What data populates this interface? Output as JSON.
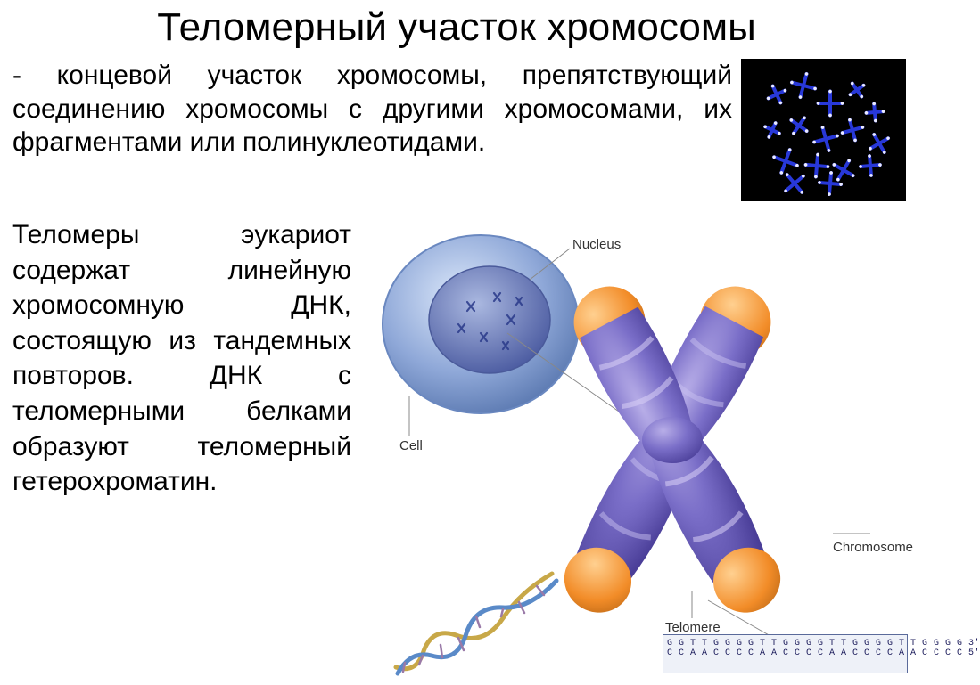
{
  "title": "Теломерный участок хромосомы",
  "para1": "- концевой участок хромосомы, препятствующий соединению хромосомы с другими хромосомами, их фрагментами или полинуклеотидами.",
  "para2": "Теломеры эукариот содержат линейную хромосомную ДНК, состоящую из тандемных повторов. ДНК с теломерными белками образуют теломерный гетерохроматин.",
  "figure": {
    "labels": {
      "nucleus": "Nucleus",
      "cell": "Cell",
      "telomere": "Telomere",
      "chromosome": "Chromosome"
    },
    "colors": {
      "chromosome_body_light": "#8a7fc8",
      "chromosome_body_dark": "#5a4ea8",
      "chromosome_shadow": "#3c3580",
      "telomere_tip": "#f28c28",
      "telomere_tip_light": "#ffb85a",
      "cell_outer": "#b0c8e8",
      "cell_inner": "#3a5aa8",
      "nucleus_fill": "#9aafd8",
      "nucleus_inner": "#6a7fc0",
      "dna_strand1": "#c8a848",
      "dna_strand2": "#5a8ac8",
      "leader_line": "#888888"
    },
    "sequence": {
      "top": "G G T T G G G G T T G G G G T T G G G G T T G G G G 3'",
      "bottom": "C C A A C C C C A A C C C C A A C C C C A A C C C C 5'"
    }
  },
  "thumb": {
    "bg": "#000000",
    "chromo_color": "#2838d8",
    "tip_color": "#eaeaff"
  }
}
